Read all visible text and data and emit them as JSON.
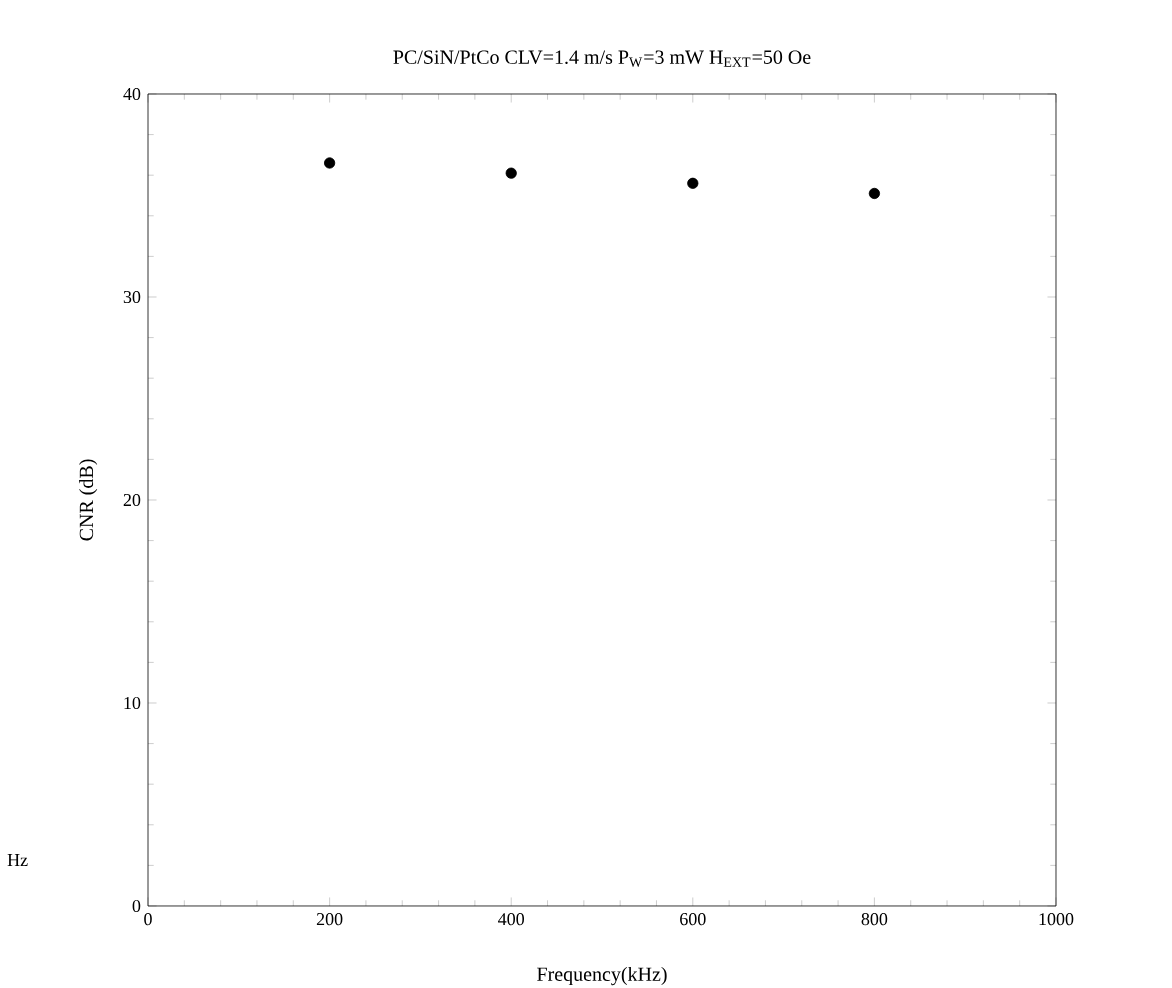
{
  "chart_data": {
    "type": "scatter",
    "title": "PC/SiN/PtCo  CLV=1.4 m/s  P$_{W}$=3 mW  H$_{EXT}$=50 Oe",
    "xlabel": "Frequency(kHz)",
    "ylabel": "CNR (dB)",
    "annotations": [
      "Hz"
    ],
    "x": [
      200,
      400,
      600,
      800
    ],
    "values": [
      36.6,
      36.1,
      35.6,
      35.1
    ],
    "color": "#000000",
    "xlim": [
      0,
      1000
    ],
    "ylim": [
      0,
      40
    ],
    "xticks": [
      0,
      200,
      400,
      600,
      800,
      1000
    ],
    "yticks": [
      0,
      10,
      20,
      30,
      40
    ],
    "grid": false
  }
}
